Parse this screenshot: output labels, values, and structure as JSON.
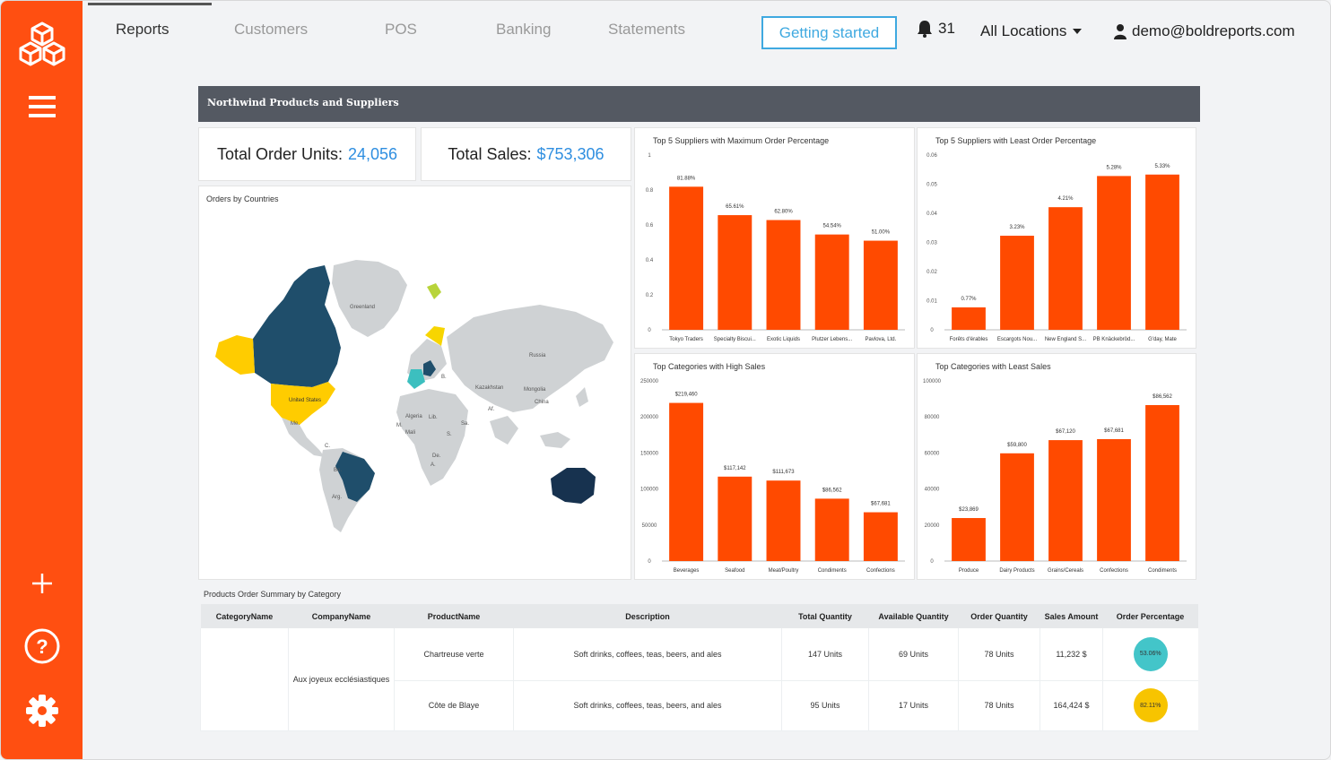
{
  "nav": {
    "tabs": [
      "Reports",
      "Customers",
      "POS",
      "Banking",
      "Statements"
    ],
    "getting_started": "Getting started",
    "notifications": "31",
    "location": "All Locations",
    "user_email": "demo@boldreports.com"
  },
  "report": {
    "title": "Northwind Products and Suppliers",
    "kpi_units_label": "Total Order Units:",
    "kpi_units_value": "24,056",
    "kpi_sales_label": "Total Sales:",
    "kpi_sales_value": "$753,306",
    "map_title": "Orders by Countries",
    "map_labels": [
      "Greenland",
      "Russia",
      "United States",
      "Kazakhstan",
      "Mongolia",
      "China",
      "Algeria",
      "Lib.",
      "Mali",
      "Me.",
      "M.",
      "Sa.",
      "Af.",
      "B.",
      "De.",
      "A.",
      "S.",
      "C.",
      "Bo.",
      "Arg."
    ]
  },
  "colors": {
    "accent": "#ff4f11",
    "link": "#2e8ee0",
    "header": "#545962",
    "bar": "#ff4a00"
  },
  "chart_data": [
    {
      "type": "bar",
      "title": "Top 5 Suppliers with Maximum Order Percentage",
      "categories": [
        "Tokyo Traders",
        "Specialty Biscui...",
        "Exotic Liquids",
        "Plutzer Lebens...",
        "Pavlova, Ltd."
      ],
      "values": [
        0.8188,
        0.6561,
        0.628,
        0.5454,
        0.51
      ],
      "labels": [
        "81.88%",
        "65.61%",
        "62.80%",
        "54.54%",
        "51.00%"
      ],
      "yticks": [
        "0",
        "0.2",
        "0.4",
        "0.6",
        "0.8",
        "1"
      ],
      "ylim": [
        0,
        1
      ]
    },
    {
      "type": "bar",
      "title": "Top 5 Suppliers with Least Order Percentage",
      "categories": [
        "Forêts d'érables",
        "Escargots Nou...",
        "New England S...",
        "PB Knäckebröd...",
        "G'day, Mate"
      ],
      "values": [
        0.0077,
        0.0323,
        0.0421,
        0.0528,
        0.0533
      ],
      "labels": [
        "0.77%",
        "3.23%",
        "4.21%",
        "5.28%",
        "5.33%"
      ],
      "yticks": [
        "0",
        "0.01",
        "0.02",
        "0.03",
        "0.04",
        "0.05",
        "0.06"
      ],
      "ylim": [
        0,
        0.06
      ]
    },
    {
      "type": "bar",
      "title": "Top Categories with High Sales",
      "categories": [
        "Beverages",
        "Seafood",
        "Meat/Poultry",
        "Condiments",
        "Confections"
      ],
      "values": [
        219460,
        117142,
        111673,
        86562,
        67681
      ],
      "labels": [
        "$219,460",
        "$117,142",
        "$111,673",
        "$86,562",
        "$67,681"
      ],
      "yticks": [
        "0",
        "50000",
        "100000",
        "150000",
        "200000",
        "250000"
      ],
      "ylim": [
        0,
        250000
      ]
    },
    {
      "type": "bar",
      "title": "Top Categories with Least Sales",
      "categories": [
        "Produce",
        "Dairy Products",
        "Grains/Cereals",
        "Confections",
        "Condiments"
      ],
      "values": [
        23869,
        59800,
        67120,
        67681,
        86562
      ],
      "labels": [
        "$23,869",
        "$59,800",
        "$67,120",
        "$67,681",
        "$86,562"
      ],
      "yticks": [
        "0",
        "20000",
        "40000",
        "60000",
        "80000",
        "100000"
      ],
      "ylim": [
        0,
        100000
      ]
    }
  ],
  "table": {
    "title": "Products Order Summary by Category",
    "headers": [
      "CategoryName",
      "CompanyName",
      "ProductName",
      "Description",
      "Total Quantity",
      "Available Quantity",
      "Order Quantity",
      "Sales Amount",
      "Order Percentage"
    ],
    "company": "Aux joyeux ecclésiastiques",
    "rows": [
      {
        "product": "Chartreuse verte",
        "description": "Soft drinks, coffees, teas, beers, and ales",
        "total": "147 Units",
        "available": "69 Units",
        "order": "78 Units",
        "sales": "11,232 $",
        "pct": "53.06%",
        "pct_color": "#43c5c9"
      },
      {
        "product": "Côte de Blaye",
        "description": "Soft drinks, coffees, teas, beers, and ales",
        "total": "95 Units",
        "available": "17 Units",
        "order": "78 Units",
        "sales": "164,424 $",
        "pct": "82.11%",
        "pct_color": "#f7c400"
      }
    ]
  }
}
